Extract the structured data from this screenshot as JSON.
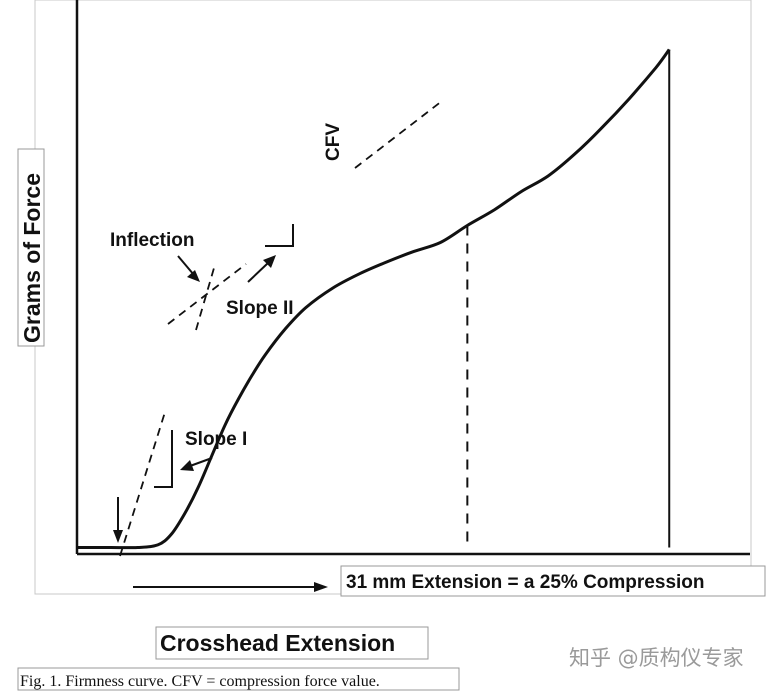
{
  "chart_data": {
    "type": "line",
    "title": "",
    "xlabel": "Crosshead Extension",
    "ylabel": "Grams of Force",
    "axis_ticks": false,
    "grid": false,
    "series": [
      {
        "values_description": "",
        "x": [
          0,
          2.5,
          4,
          5,
          6,
          7,
          8,
          9,
          10,
          11,
          12,
          13.5,
          15,
          17,
          19,
          21,
          23,
          25,
          27,
          29,
          31,
          33,
          35,
          37,
          39,
          41,
          42
        ],
        "y": [
          0,
          0,
          0.2,
          1.0,
          2.6,
          4.6,
          7.0,
          9.4,
          11.4,
          13.2,
          14.8,
          16.8,
          18.4,
          19.9,
          21.0,
          21.9,
          22.7,
          23.4,
          24.7,
          25.9,
          27.3,
          28.5,
          30.2,
          32.2,
          34.4,
          36.8,
          38.2
        ]
      }
    ],
    "xlim": [
      -2,
      48
    ],
    "ylim": [
      -0.5,
      42
    ],
    "annotations": {
      "inflection": "Inflection",
      "slope_1": "Slope I",
      "slope_2": "Slope II",
      "cfv": "CFV",
      "extension_note": "31 mm Extension = a 25% Compression"
    }
  },
  "caption": "Fig. 1. Firmness curve. CFV = compression force value.",
  "watermark": "知乎 @质构仪专家"
}
